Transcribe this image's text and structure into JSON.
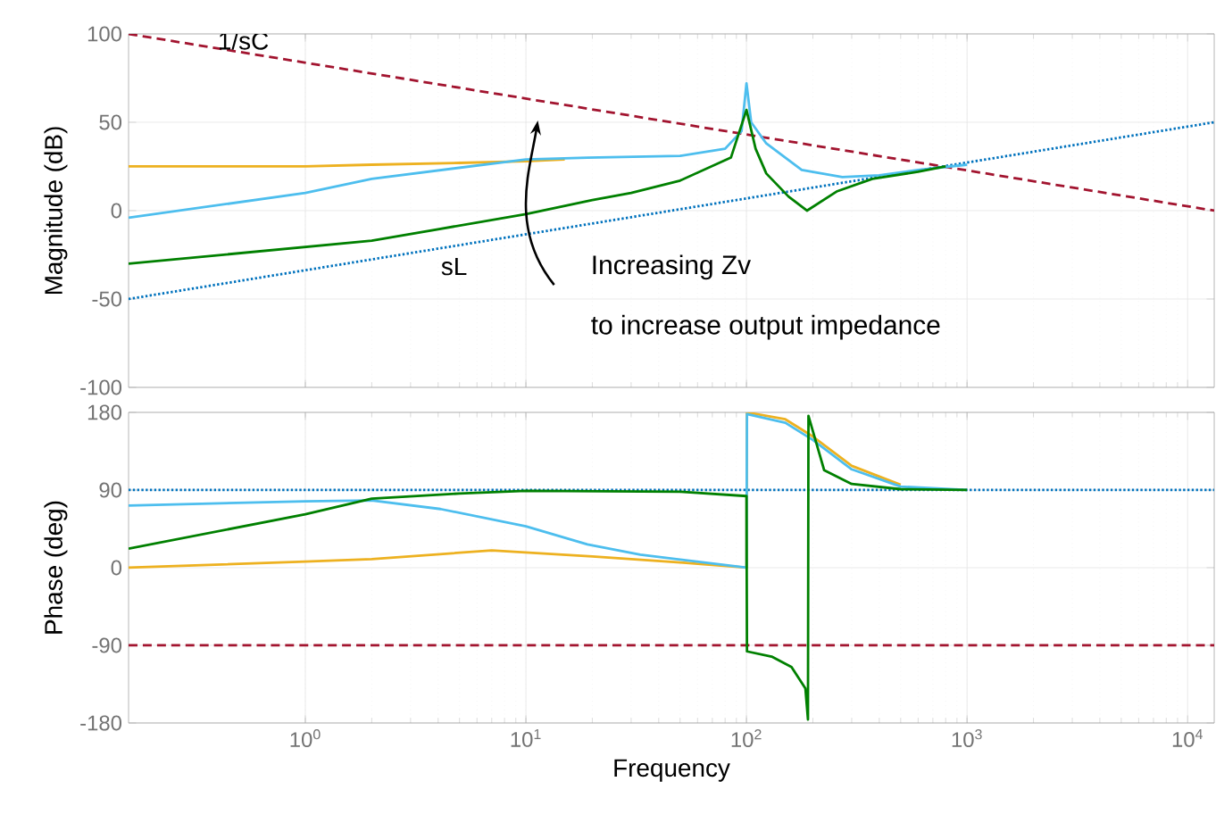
{
  "chart_data": [
    {
      "type": "line",
      "ylabel": "Magnitude (dB)",
      "log": "x",
      "grid": true,
      "tick_labels": "y",
      "xlim": [
        0.158,
        13200
      ],
      "ylim": [
        -100,
        100
      ],
      "xticks": [
        {
          "value": 1,
          "label": null
        },
        {
          "value": 10,
          "label": null
        },
        {
          "value": 100,
          "label": null
        },
        {
          "value": 1000,
          "label": null
        },
        {
          "value": 10000,
          "label": null
        }
      ],
      "yticks": [
        -100,
        -50,
        0,
        50,
        100
      ],
      "annotations": [
        "Increasing Zv",
        "to increase output impedance"
      ],
      "series": [
        {
          "name": "1/sC",
          "color": "#a2142f",
          "line_style": "dashed",
          "x": [
            0.158,
            13200
          ],
          "values": [
            100,
            0
          ]
        },
        {
          "name": "sL",
          "color": "#0072bd",
          "line_style": "dotted",
          "x": [
            0.158,
            13200
          ],
          "values": [
            -50,
            50
          ]
        },
        {
          "color": "#edb120",
          "x": [
            0.158,
            1,
            2,
            5,
            10,
            15
          ],
          "values": [
            25,
            25,
            26,
            27,
            28,
            29
          ]
        },
        {
          "color": "#4dbeee",
          "x": [
            0.158,
            1,
            2,
            10,
            19,
            50,
            80,
            95,
            100,
            105,
            123,
            178,
            272,
            400,
            600,
            1000
          ],
          "values": [
            -4,
            10,
            18,
            29,
            30,
            31,
            35,
            45,
            72,
            50,
            38,
            23,
            19,
            20,
            23,
            26
          ]
        },
        {
          "color": "#008000",
          "x": [
            0.158,
            2,
            10,
            20,
            30,
            50,
            85,
            100,
            110,
            123,
            155,
            188,
            258,
            372,
            600,
            800
          ],
          "values": [
            -30,
            -17,
            -2,
            6,
            10,
            17,
            30,
            57,
            35,
            21,
            8,
            0,
            11,
            18,
            22,
            25
          ]
        }
      ]
    },
    {
      "type": "line",
      "xlabel": "Frequency",
      "ylabel": "Phase (deg)",
      "log": "x",
      "grid": true,
      "xlim": [
        0.158,
        13200
      ],
      "ylim": [
        -180,
        180
      ],
      "xticks": [
        {
          "value": 1,
          "label": "10$^{0}$"
        },
        {
          "value": 10,
          "label": "10$^{1}$"
        },
        {
          "value": 100,
          "label": "10$^{2}$"
        },
        {
          "value": 1000,
          "label": "10$^{3}$"
        },
        {
          "value": 10000,
          "label": "10$^{4}$"
        }
      ],
      "yticks": [
        -180,
        -90,
        0,
        90,
        180
      ],
      "series": [
        {
          "color": "#a2142f",
          "line_style": "dashed",
          "x": [
            0.158,
            13200
          ],
          "values": [
            -90,
            -90
          ]
        },
        {
          "color": "#0072bd",
          "line_style": "dotted",
          "x": [
            0.158,
            13200
          ],
          "values": [
            90,
            90
          ]
        },
        {
          "color": "#edb120",
          "x": [
            0.158,
            1,
            2,
            7,
            20,
            50,
            100,
            100.5,
            150,
            200,
            300,
            500
          ],
          "values": [
            0,
            7,
            10,
            20,
            13,
            6,
            0,
            180,
            172,
            152,
            118,
            96
          ]
        },
        {
          "color": "#4dbeee",
          "x": [
            0.158,
            1,
            2,
            4.1,
            10,
            19,
            33,
            100,
            100.5,
            150,
            200,
            300,
            500,
            1000
          ],
          "values": [
            72,
            77,
            78,
            68,
            48,
            27,
            15,
            0,
            178,
            168,
            148,
            114,
            94,
            90
          ]
        },
        {
          "color": "#008000",
          "x": [
            0.158,
            1,
            2,
            5,
            10,
            50,
            100,
            100.5,
            130,
            160,
            185,
            190,
            191,
            225,
            300,
            500,
            1000
          ],
          "values": [
            22,
            62,
            80,
            86,
            89,
            88,
            83,
            -97,
            -103,
            -115,
            -140,
            -176,
            176,
            113,
            97,
            91,
            90
          ]
        }
      ]
    }
  ]
}
